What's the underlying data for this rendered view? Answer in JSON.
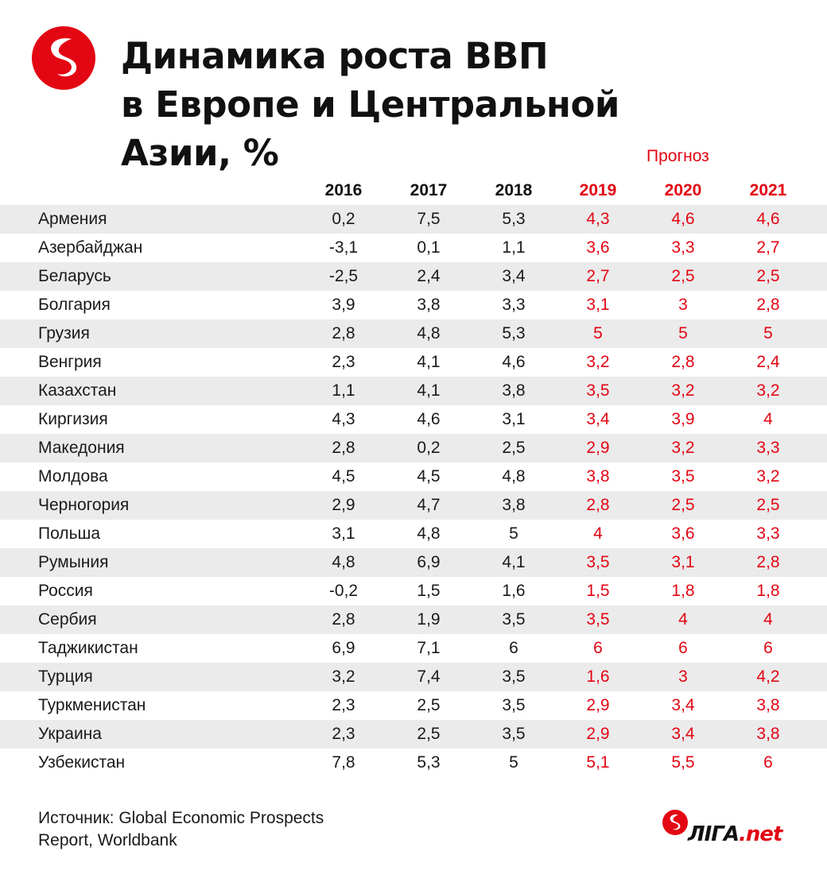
{
  "title_lines": [
    "Динамика роста ВВП",
    "в Европе и Центральной",
    "Азии, %"
  ],
  "forecast_label": "Прогноз",
  "brand": {
    "prefix": "ЛIГА",
    "suffix": ".net"
  },
  "colors": {
    "accent": "#e30613",
    "stripe": "#ebebeb",
    "text": "#1a1a1a"
  },
  "source_lines": [
    "Источник: Global Economic Prospects",
    "Report, Worldbank"
  ],
  "chart_data": {
    "type": "table",
    "title": "Динамика роста ВВП в Европе и Центральной Азии, %",
    "columns": [
      "2016",
      "2017",
      "2018",
      "2019",
      "2020",
      "2021"
    ],
    "forecast_columns": [
      "2019",
      "2020",
      "2021"
    ],
    "rows": [
      {
        "country": "Армения",
        "values": [
          "0,2",
          "7,5",
          "5,3",
          "4,3",
          "4,6",
          "4,6"
        ]
      },
      {
        "country": "Азербайджан",
        "values": [
          "-3,1",
          "0,1",
          "1,1",
          "3,6",
          "3,3",
          "2,7"
        ]
      },
      {
        "country": "Беларусь",
        "values": [
          "-2,5",
          "2,4",
          "3,4",
          "2,7",
          "2,5",
          "2,5"
        ]
      },
      {
        "country": "Болгария",
        "values": [
          "3,9",
          "3,8",
          "3,3",
          "3,1",
          "3",
          "2,8"
        ]
      },
      {
        "country": "Грузия",
        "values": [
          "2,8",
          "4,8",
          "5,3",
          "5",
          "5",
          "5"
        ]
      },
      {
        "country": "Венгрия",
        "values": [
          "2,3",
          "4,1",
          "4,6",
          "3,2",
          "2,8",
          "2,4"
        ]
      },
      {
        "country": "Казахстан",
        "values": [
          "1,1",
          "4,1",
          "3,8",
          "3,5",
          "3,2",
          "3,2"
        ]
      },
      {
        "country": "Киргизия",
        "values": [
          "4,3",
          "4,6",
          "3,1",
          "3,4",
          "3,9",
          "4"
        ]
      },
      {
        "country": "Македония",
        "values": [
          "2,8",
          "0,2",
          "2,5",
          "2,9",
          "3,2",
          "3,3"
        ]
      },
      {
        "country": "Молдова",
        "values": [
          "4,5",
          "4,5",
          "4,8",
          "3,8",
          "3,5",
          "3,2"
        ]
      },
      {
        "country": "Черногория",
        "values": [
          "2,9",
          "4,7",
          "3,8",
          "2,8",
          "2,5",
          "2,5"
        ]
      },
      {
        "country": "Польша",
        "values": [
          "3,1",
          "4,8",
          "5",
          "4",
          "3,6",
          "3,3"
        ]
      },
      {
        "country": "Румыния",
        "values": [
          "4,8",
          "6,9",
          "4,1",
          "3,5",
          "3,1",
          "2,8"
        ]
      },
      {
        "country": "Россия",
        "values": [
          "-0,2",
          "1,5",
          "1,6",
          "1,5",
          "1,8",
          "1,8"
        ]
      },
      {
        "country": "Сербия",
        "values": [
          "2,8",
          "1,9",
          "3,5",
          "3,5",
          "4",
          "4"
        ]
      },
      {
        "country": "Таджикистан",
        "values": [
          "6,9",
          "7,1",
          "6",
          "6",
          "6",
          "6"
        ]
      },
      {
        "country": "Турция",
        "values": [
          "3,2",
          "7,4",
          "3,5",
          "1,6",
          "3",
          "4,2"
        ]
      },
      {
        "country": "Туркменистан",
        "values": [
          "2,3",
          "2,5",
          "3,5",
          "2,9",
          "3,4",
          "3,8"
        ]
      },
      {
        "country": "Украина",
        "values": [
          "2,3",
          "2,5",
          "3,5",
          "2,9",
          "3,4",
          "3,8"
        ]
      },
      {
        "country": "Узбекистан",
        "values": [
          "7,8",
          "5,3",
          "5",
          "5,1",
          "5,5",
          "6"
        ]
      }
    ]
  }
}
